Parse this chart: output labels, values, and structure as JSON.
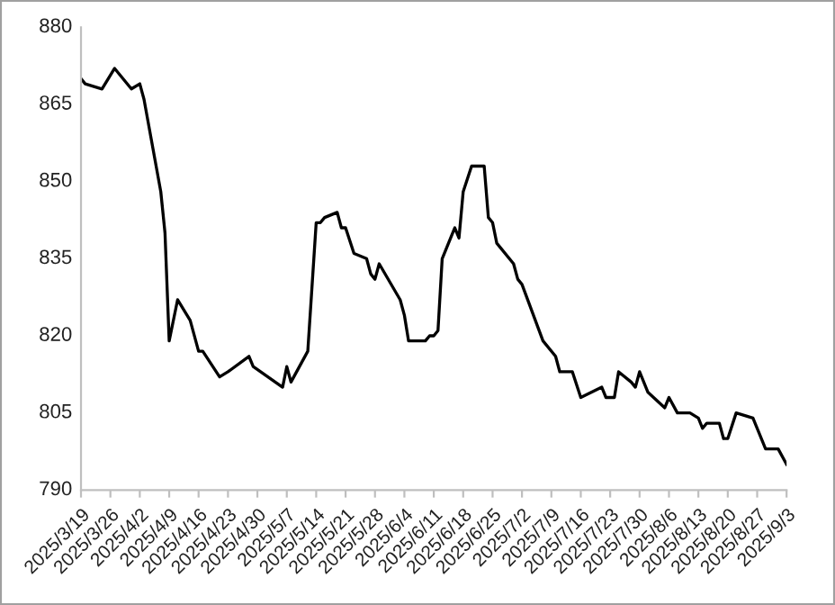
{
  "chart_data": {
    "type": "line",
    "x": [
      "2025-03-19",
      "2025-03-20",
      "2025-03-24",
      "2025-03-27",
      "2025-03-31",
      "2025-04-02",
      "2025-04-03",
      "2025-04-07",
      "2025-04-08",
      "2025-04-09",
      "2025-04-11",
      "2025-04-14",
      "2025-04-16",
      "2025-04-17",
      "2025-04-21",
      "2025-04-23",
      "2025-04-28",
      "2025-04-29",
      "2025-05-06",
      "2025-05-07",
      "2025-05-08",
      "2025-05-12",
      "2025-05-14",
      "2025-05-15",
      "2025-05-16",
      "2025-05-19",
      "2025-05-20",
      "2025-05-21",
      "2025-05-23",
      "2025-05-26",
      "2025-05-27",
      "2025-05-28",
      "2025-05-29",
      "2025-06-03",
      "2025-06-04",
      "2025-06-05",
      "2025-06-09",
      "2025-06-10",
      "2025-06-11",
      "2025-06-12",
      "2025-06-13",
      "2025-06-16",
      "2025-06-17",
      "2025-06-18",
      "2025-06-20",
      "2025-06-23",
      "2025-06-24",
      "2025-06-25",
      "2025-06-26",
      "2025-06-30",
      "2025-07-01",
      "2025-07-02",
      "2025-07-07",
      "2025-07-10",
      "2025-07-11",
      "2025-07-14",
      "2025-07-16",
      "2025-07-21",
      "2025-07-22",
      "2025-07-24",
      "2025-07-25",
      "2025-07-28",
      "2025-07-29",
      "2025-07-30",
      "2025-08-01",
      "2025-08-05",
      "2025-08-06",
      "2025-08-08",
      "2025-08-11",
      "2025-08-13",
      "2025-08-14",
      "2025-08-15",
      "2025-08-18",
      "2025-08-19",
      "2025-08-20",
      "2025-08-22",
      "2025-08-26",
      "2025-08-29",
      "2025-09-01",
      "2025-09-03"
    ],
    "series": [
      {
        "color": "#000000",
        "values": [
          870,
          869,
          868,
          872,
          868,
          869,
          866,
          848,
          840,
          819,
          827,
          823,
          817,
          817,
          812,
          813,
          816,
          814,
          810,
          814,
          811,
          817,
          842,
          842,
          843,
          844,
          841,
          841,
          836,
          835,
          832,
          831,
          834,
          827,
          824,
          819,
          819,
          820,
          820,
          821,
          835,
          841,
          839,
          848,
          853,
          853,
          843,
          842,
          838,
          834,
          831,
          830,
          819,
          816,
          813,
          813,
          808,
          810,
          808,
          808,
          813,
          811,
          810,
          813,
          809,
          806,
          808,
          805,
          805,
          804,
          802,
          803,
          803,
          800,
          800,
          805,
          804,
          798,
          798,
          795
        ]
      }
    ],
    "xlim": [
      "2025-03-19",
      "2025-09-03"
    ],
    "xticks": [
      {
        "value": "2025-03-19",
        "label": "2025/3/19"
      },
      {
        "value": "2025-03-26",
        "label": "2025/3/26"
      },
      {
        "value": "2025-04-02",
        "label": "2025/4/2"
      },
      {
        "value": "2025-04-09",
        "label": "2025/4/9"
      },
      {
        "value": "2025-04-16",
        "label": "2025/4/16"
      },
      {
        "value": "2025-04-23",
        "label": "2025/4/23"
      },
      {
        "value": "2025-04-30",
        "label": "2025/4/30"
      },
      {
        "value": "2025-05-07",
        "label": "2025/5/7"
      },
      {
        "value": "2025-05-14",
        "label": "2025/5/14"
      },
      {
        "value": "2025-05-21",
        "label": "2025/5/21"
      },
      {
        "value": "2025-05-28",
        "label": "2025/5/28"
      },
      {
        "value": "2025-06-04",
        "label": "2025/6/4"
      },
      {
        "value": "2025-06-11",
        "label": "2025/6/11"
      },
      {
        "value": "2025-06-18",
        "label": "2025/6/18"
      },
      {
        "value": "2025-06-25",
        "label": "2025/6/25"
      },
      {
        "value": "2025-07-02",
        "label": "2025/7/2"
      },
      {
        "value": "2025-07-09",
        "label": "2025/7/9"
      },
      {
        "value": "2025-07-16",
        "label": "2025/7/16"
      },
      {
        "value": "2025-07-23",
        "label": "2025/7/23"
      },
      {
        "value": "2025-07-30",
        "label": "2025/7/30"
      },
      {
        "value": "2025-08-06",
        "label": "2025/8/6"
      },
      {
        "value": "2025-08-13",
        "label": "2025/8/13"
      },
      {
        "value": "2025-08-20",
        "label": "2025/8/20"
      },
      {
        "value": "2025-08-27",
        "label": "2025/8/27"
      },
      {
        "value": "2025-09-03",
        "label": "2025/9/3"
      }
    ],
    "ylim": [
      790,
      880
    ],
    "yticks": [
      790,
      805,
      820,
      835,
      850,
      865,
      880
    ],
    "grid": false,
    "legend": false,
    "marker": "none",
    "line_style": "solid"
  }
}
